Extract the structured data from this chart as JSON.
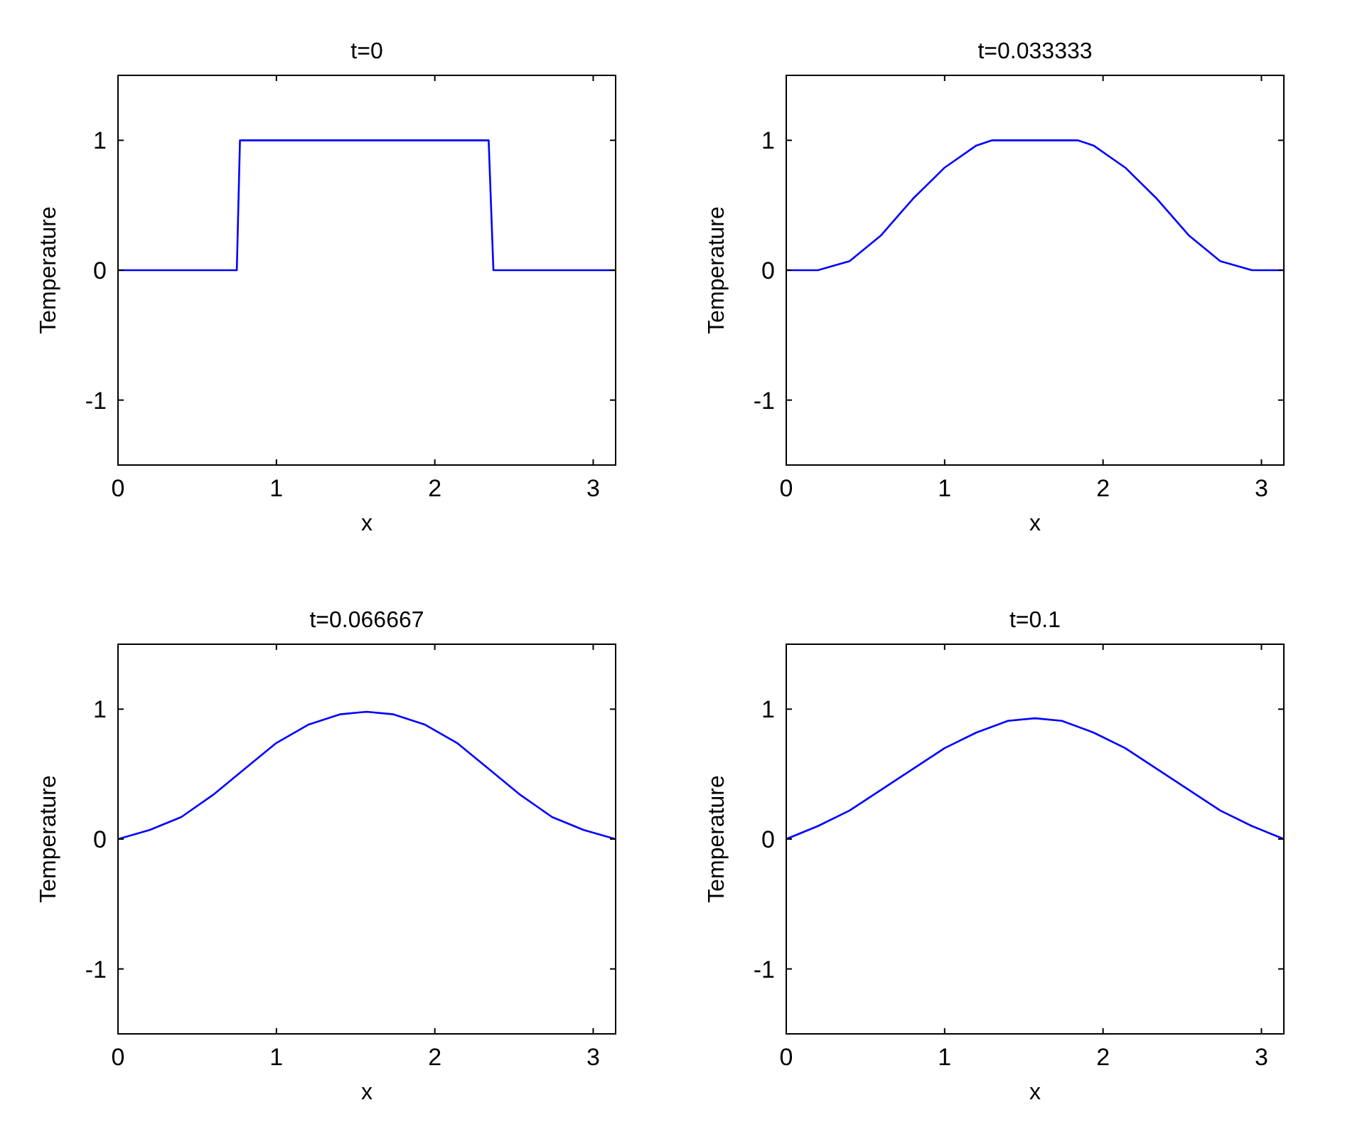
{
  "chart_data": [
    {
      "type": "line",
      "title": "t=0",
      "xlabel": "x",
      "ylabel": "Temperature",
      "xlim": [
        0,
        3.1416
      ],
      "xticks": [
        0,
        1,
        2,
        3
      ],
      "ylim": [
        -1.5,
        1.5
      ],
      "yticks": [
        -1,
        0,
        1
      ],
      "grid": false,
      "series": [
        {
          "color": "#0000ff",
          "x": [
            0,
            0.75,
            0.77,
            2.34,
            2.37,
            3.1416
          ],
          "values": [
            0,
            0,
            1,
            1,
            0,
            0
          ]
        }
      ]
    },
    {
      "type": "line",
      "title": "t=0.033333",
      "xlabel": "x",
      "ylabel": "Temperature",
      "xlim": [
        0,
        3.1416
      ],
      "xticks": [
        0,
        1,
        2,
        3
      ],
      "ylim": [
        -1.5,
        1.5
      ],
      "yticks": [
        -1,
        0,
        1
      ],
      "grid": false,
      "series": [
        {
          "color": "#0000ff",
          "x": [
            0,
            0.2,
            0.4,
            0.6,
            0.8,
            1.0,
            1.2,
            1.3,
            1.57,
            1.84,
            1.94,
            2.14,
            2.34,
            2.54,
            2.74,
            2.94,
            3.1416
          ],
          "values": [
            0,
            0,
            0.07,
            0.27,
            0.55,
            0.79,
            0.96,
            1,
            1,
            1,
            0.96,
            0.79,
            0.55,
            0.27,
            0.07,
            0,
            0
          ]
        }
      ]
    },
    {
      "type": "line",
      "title": "t=0.066667",
      "xlabel": "x",
      "ylabel": "Temperature",
      "xlim": [
        0,
        3.1416
      ],
      "xticks": [
        0,
        1,
        2,
        3
      ],
      "ylim": [
        -1.5,
        1.5
      ],
      "yticks": [
        -1,
        0,
        1
      ],
      "grid": false,
      "series": [
        {
          "color": "#0000ff",
          "x": [
            0,
            0.2,
            0.4,
            0.6,
            0.8,
            1.0,
            1.2,
            1.4,
            1.57,
            1.74,
            1.94,
            2.14,
            2.34,
            2.54,
            2.74,
            2.94,
            3.1416
          ],
          "values": [
            0,
            0.07,
            0.17,
            0.34,
            0.54,
            0.74,
            0.88,
            0.96,
            0.98,
            0.96,
            0.88,
            0.74,
            0.54,
            0.34,
            0.17,
            0.07,
            0
          ]
        }
      ]
    },
    {
      "type": "line",
      "title": "t=0.1",
      "xlabel": "x",
      "ylabel": "Temperature",
      "xlim": [
        0,
        3.1416
      ],
      "xticks": [
        0,
        1,
        2,
        3
      ],
      "ylim": [
        -1.5,
        1.5
      ],
      "yticks": [
        -1,
        0,
        1
      ],
      "grid": false,
      "series": [
        {
          "color": "#0000ff",
          "x": [
            0,
            0.2,
            0.4,
            0.6,
            0.8,
            1.0,
            1.2,
            1.4,
            1.57,
            1.74,
            1.94,
            2.14,
            2.34,
            2.54,
            2.74,
            2.94,
            3.1416
          ],
          "values": [
            0,
            0.1,
            0.22,
            0.38,
            0.54,
            0.7,
            0.82,
            0.91,
            0.93,
            0.91,
            0.82,
            0.7,
            0.54,
            0.38,
            0.22,
            0.1,
            0
          ]
        }
      ]
    }
  ]
}
